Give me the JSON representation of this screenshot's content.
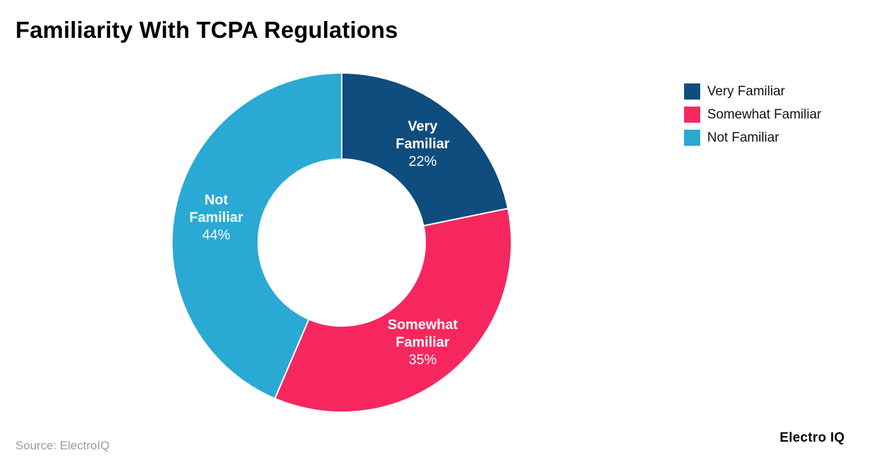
{
  "title": "Familiarity With TCPA Regulations",
  "source": "Source: ElectroIQ",
  "brand": "Electro IQ",
  "chart_data": {
    "type": "pie",
    "subtype": "donut",
    "title": "Familiarity With TCPA Regulations",
    "categories": [
      "Very Familiar",
      "Somewhat Familiar",
      "Not Familiar"
    ],
    "values": [
      22,
      35,
      44
    ],
    "unit": "%",
    "colors": [
      "#0e4d7d",
      "#f6275e",
      "#29a9d4"
    ],
    "label_color": "#ffffff",
    "start_angle_deg": 0,
    "direction": "clockwise",
    "inner_radius_ratio": 0.49,
    "legend_position": "top-right",
    "slice_labels": [
      {
        "lines": [
          "Very",
          "Familiar"
        ],
        "value_label": "22%"
      },
      {
        "lines": [
          "Somewhat",
          "Familiar"
        ],
        "value_label": "35%"
      },
      {
        "lines": [
          "Not",
          "Familiar"
        ],
        "value_label": "44%"
      }
    ]
  },
  "legend": {
    "items": [
      {
        "label": "Very Familiar",
        "color": "#0e4d7d"
      },
      {
        "label": "Somewhat Familiar",
        "color": "#f6275e"
      },
      {
        "label": "Not Familiar",
        "color": "#29a9d4"
      }
    ]
  }
}
